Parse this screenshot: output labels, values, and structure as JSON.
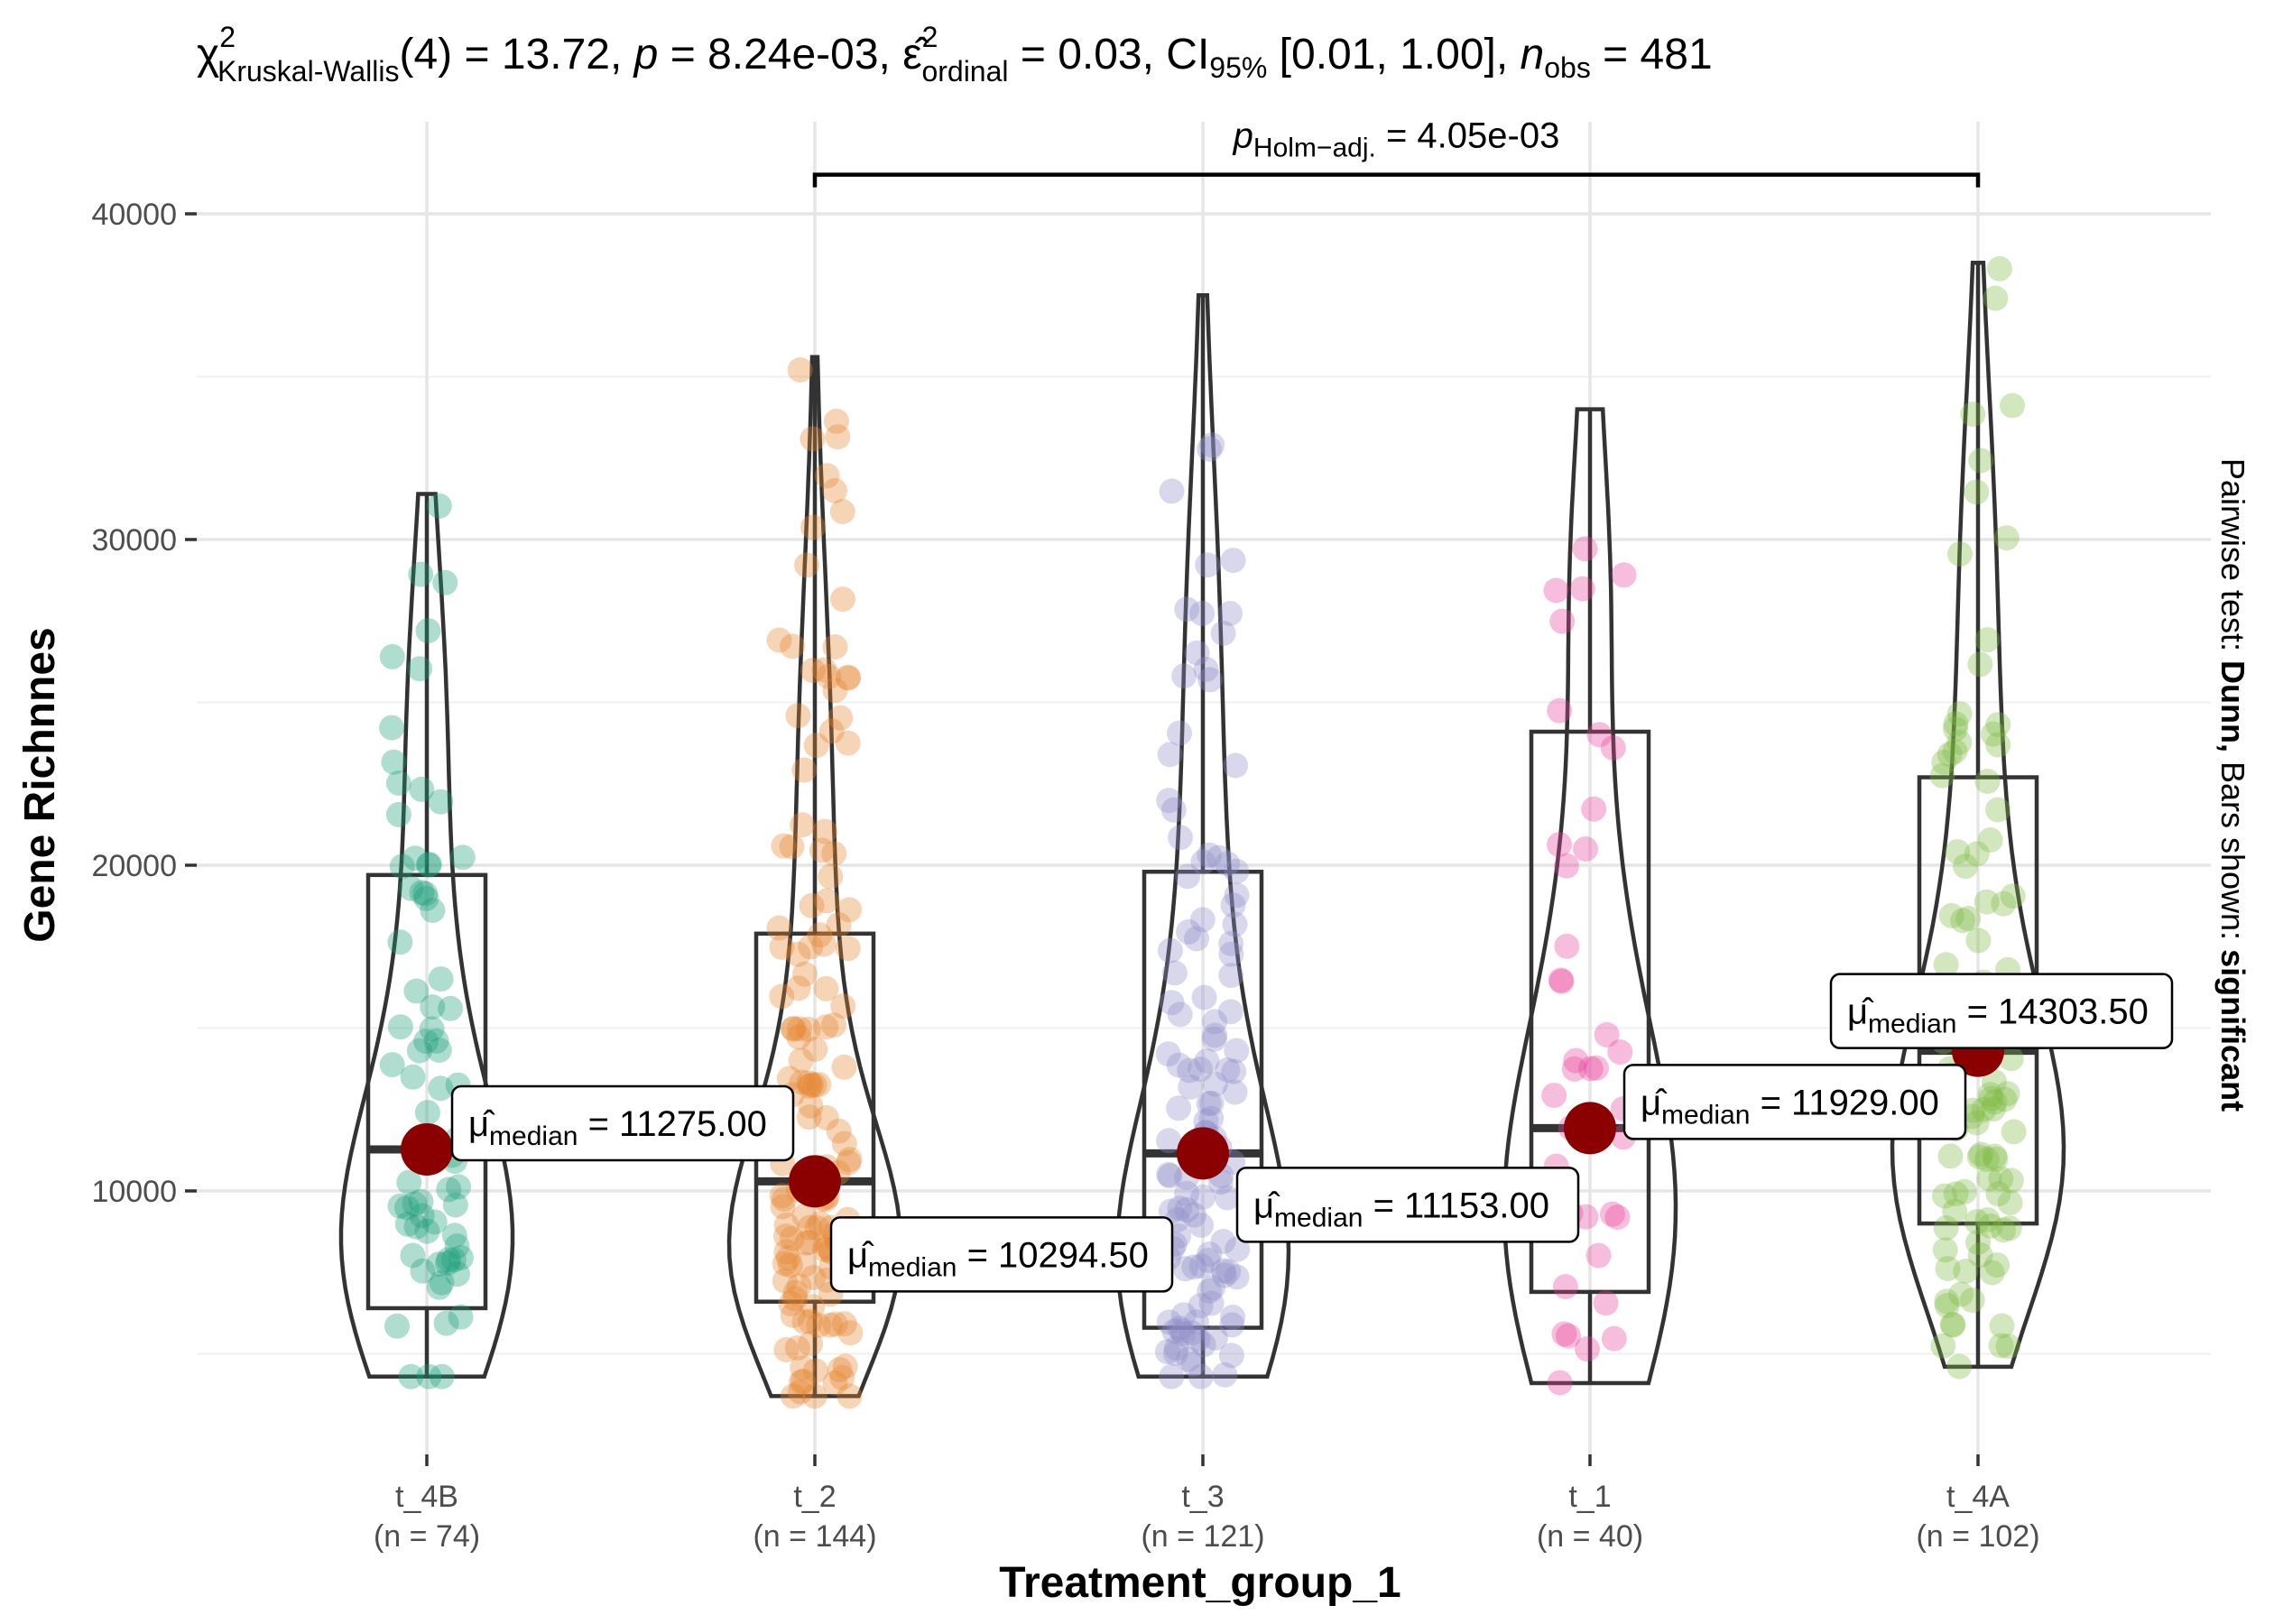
{
  "chart_data": {
    "type": "violin-box-scatter",
    "title": "χ² Kruskal-Wallis(4) = 13.72, p = 8.24e-03, ε̂² ordinal = 0.03, CI95% [0.01, 1.00], n obs = 481",
    "title_parts": {
      "chi": "χ",
      "chi_sup": "2",
      "chi_sub": "Kruskal-Wallis",
      "stat": "(4) = 13.72, ",
      "p_sym": "p",
      "p_val": " = 8.24e-03, ",
      "eps": "ε̂",
      "eps_sup": "2",
      "eps_sub": "ordinal",
      "eps_val": " = 0.03, CI",
      "ci_sub": "95%",
      "ci_val": " [0.01, 1.00], ",
      "n_sym": "n",
      "n_sub": "obs",
      "n_val": " = 481"
    },
    "xlabel": "Treatment_group_1",
    "ylabel": "Gene Richnnes",
    "subtitle_right": {
      "prefix": "Pairwise test: ",
      "test": "Dunn,",
      "middle": " Bars shown: ",
      "shown": "significant"
    },
    "yticks": [
      10000,
      20000,
      30000,
      40000
    ],
    "ylim": [
      2500,
      43000
    ],
    "grid": true,
    "median_label": {
      "mu": "μ̂",
      "sub": "median"
    },
    "groups": [
      {
        "label": "t_4B",
        "n_label": "(n = 74)",
        "n": 74,
        "color": "#1B9E77",
        "median": 11275.0,
        "median_text": " = 11275.00",
        "q1": 6400,
        "q3": 19700,
        "min": 4300,
        "max": 31400
      },
      {
        "label": "t_2",
        "n_label": "(n = 144)",
        "n": 144,
        "color": "#E6842E",
        "median": 10294.5,
        "median_text": " = 10294.50",
        "q1": 6600,
        "q3": 17900,
        "min": 3700,
        "max": 35600
      },
      {
        "label": "t_3",
        "n_label": "(n = 121)",
        "n": 121,
        "color": "#8E8CC8",
        "median": 11153.0,
        "median_text": " = 11153.00",
        "q1": 5800,
        "q3": 19800,
        "min": 4300,
        "max": 37500
      },
      {
        "label": "t_1",
        "n_label": "(n = 40)",
        "n": 40,
        "color": "#E8439A",
        "median": 11929.0,
        "median_text": " = 11929.00",
        "q1": 6900,
        "q3": 24100,
        "min": 4100,
        "max": 34000
      },
      {
        "label": "t_4A",
        "n_label": "(n = 102)",
        "n": 102,
        "color": "#7FB942",
        "median": 14303.5,
        "median_text": " = 14303.50",
        "q1": 9000,
        "q3": 22700,
        "min": 4600,
        "max": 38500
      }
    ],
    "comparison": {
      "from": "t_2",
      "to": "t_4A",
      "p_sym": "p",
      "p_sub": "Holm−adj.",
      "p_val": " = 4.05e-03",
      "y": 41200
    }
  },
  "style": {
    "median_point_color": "#8B0000",
    "point_opacity": 0.35
  }
}
